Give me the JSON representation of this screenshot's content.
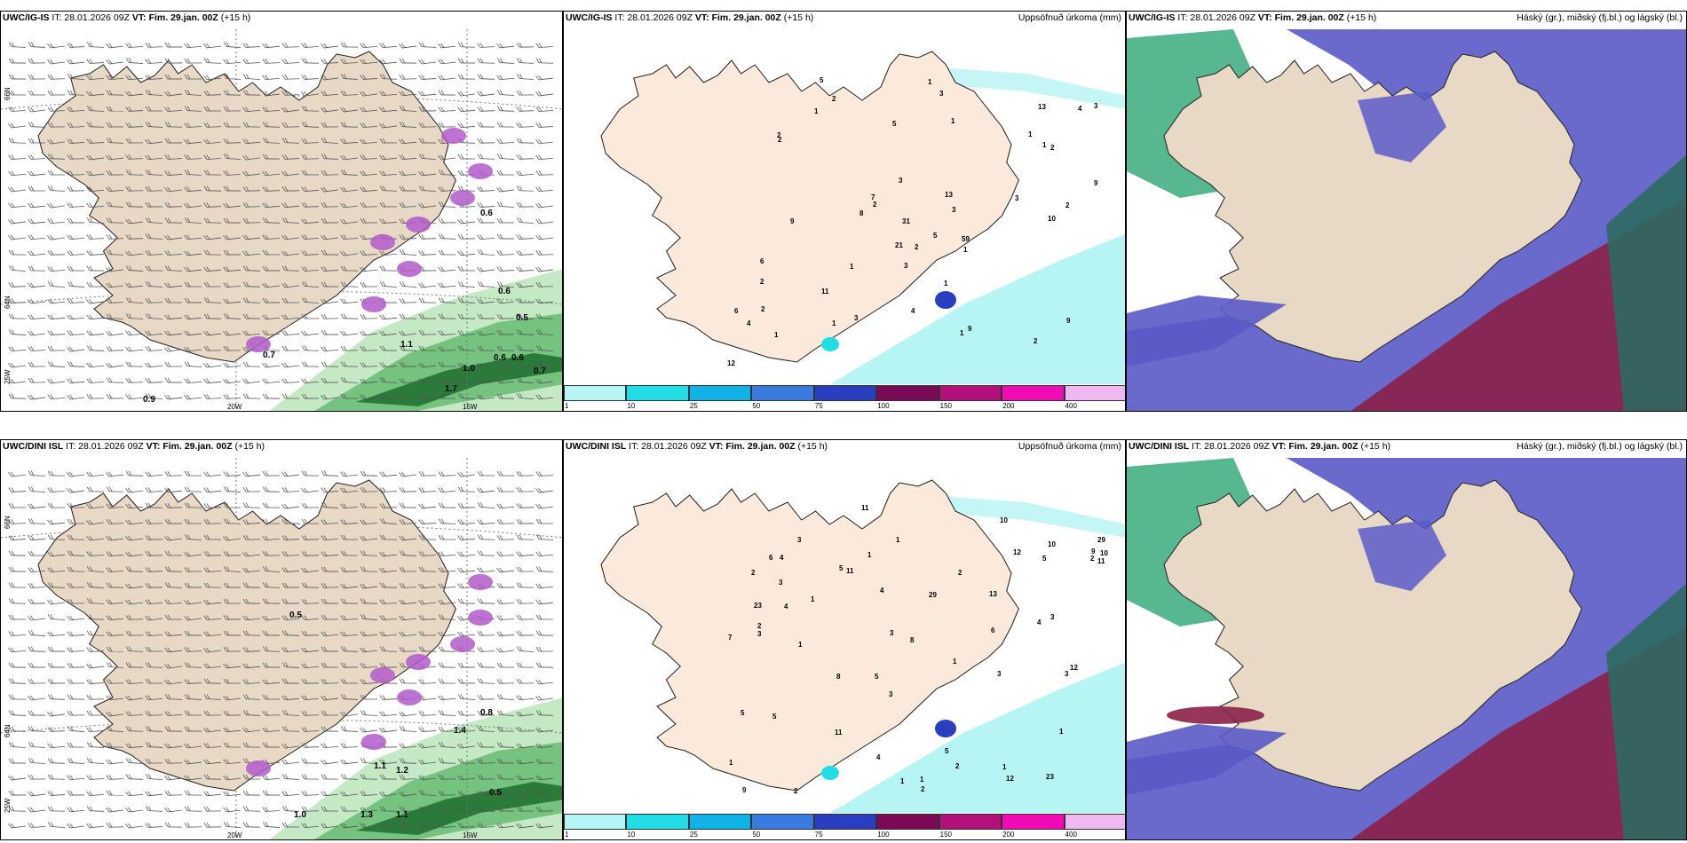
{
  "colors": {
    "land": "#e8d9c6",
    "land_light": "#fbeadb",
    "sea": "#ffffff",
    "green_dark": "#2a7a3a",
    "green_mid": "#6cbf77",
    "green_light": "#bfe6bf",
    "magenta": "#b25bc9",
    "cyan": "#b7f4f4",
    "cloud_high": "#3aaa7a",
    "cloud_mid": "#5a5ac8",
    "cloud_low": "#8a2048"
  },
  "rows": [
    {
      "model": "UWC/IG-IS",
      "it": "IT: 28.01.2026 09Z",
      "vt_label": "VT:",
      "vt_value": "Fim. 29.jan. 00Z",
      "lead": "(+15 h)",
      "precip_labels": [
        "0.6",
        "0.5",
        "1.1",
        "1.0",
        "0.6",
        "0.6",
        "0.7",
        "1.7",
        "0.9",
        "0.7",
        "0.6"
      ],
      "accum_numbers": [
        "1",
        "2",
        "2",
        "2",
        "2",
        "2",
        "3",
        "1",
        "1",
        "4",
        "1",
        "2",
        "2",
        "3",
        "3",
        "3",
        "1",
        "1",
        "1",
        "1",
        "6",
        "7",
        "3",
        "3",
        "21",
        "9",
        "11",
        "4",
        "8",
        "13",
        "5",
        "3",
        "4",
        "5",
        "1",
        "1",
        "2",
        "12",
        "31",
        "1",
        "2",
        "5",
        "9",
        "9",
        "10",
        "2",
        "13",
        "6",
        "59",
        "9"
      ]
    },
    {
      "model": "UWC/DINI ISL",
      "it": "IT: 28.01.2026 09Z",
      "vt_label": "VT:",
      "vt_value": "Fim. 29.jan. 00Z",
      "lead": "(+15 h)",
      "precip_labels": [
        "0.8",
        "1.1",
        "1.2",
        "1.4",
        "1.0",
        "1.3",
        "1.1",
        "0.5",
        "0.5"
      ],
      "accum_numbers": [
        "2",
        "1",
        "1",
        "1",
        "3",
        "1",
        "2",
        "2",
        "3",
        "4",
        "1",
        "2",
        "1",
        "2",
        "3",
        "3",
        "3",
        "11",
        "13",
        "23",
        "4",
        "5",
        "1",
        "29",
        "7",
        "6",
        "5",
        "4",
        "4",
        "1",
        "2",
        "5",
        "1",
        "3",
        "9",
        "10",
        "29",
        "3",
        "8",
        "12",
        "6",
        "5",
        "23",
        "10",
        "8",
        "5",
        "11",
        "12",
        "11",
        "12",
        "11",
        "10",
        "4",
        "5",
        "9",
        "2",
        "3",
        "1"
      ]
    }
  ],
  "accum_title": "Uppsöfnuð úrkoma (mm)",
  "cloud_title": "Háský (gr.), miðský (fj.bl.) og lágský (bl.)",
  "lat_labels": [
    "66N",
    "64N"
  ],
  "lon_labels": [
    "25W",
    "20W",
    "15W"
  ],
  "legend": {
    "ticks": [
      "1",
      "10",
      "25",
      "50",
      "75",
      "100",
      "150",
      "200",
      "400"
    ],
    "colors": [
      "#b6f5f5",
      "#22dde6",
      "#10b2e8",
      "#3a7be0",
      "#2a3ec0",
      "#7a0a56",
      "#b4107c",
      "#f20ab6",
      "#f0b8f0"
    ]
  }
}
